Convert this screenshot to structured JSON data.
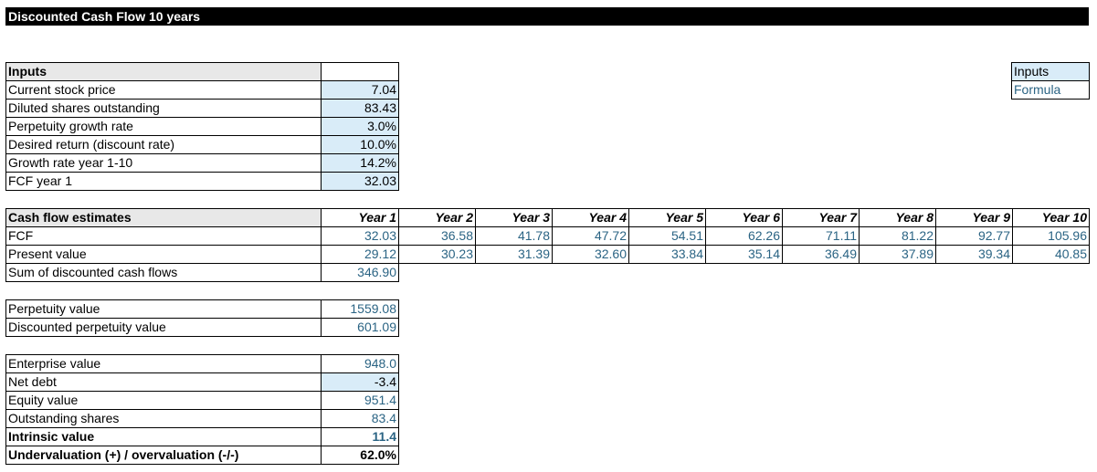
{
  "title": "Discounted Cash Flow 10 years",
  "legend": {
    "inputs": "Inputs",
    "formula": "Formula"
  },
  "inputs": {
    "header": "Inputs",
    "rows": [
      {
        "label": "Current stock price",
        "value": "7.04"
      },
      {
        "label": "Diluted shares outstanding",
        "value": "83.43"
      },
      {
        "label": "Perpetuity growth rate",
        "value": "3.0%"
      },
      {
        "label": "Desired return (discount rate)",
        "value": "10.0%"
      },
      {
        "label": "Growth rate year 1-10",
        "value": "14.2%"
      },
      {
        "label": "FCF year 1",
        "value": "32.03"
      }
    ]
  },
  "cashflow": {
    "header": "Cash flow estimates",
    "years": [
      "Year 1",
      "Year 2",
      "Year 3",
      "Year 4",
      "Year 5",
      "Year 6",
      "Year 7",
      "Year 8",
      "Year 9",
      "Year 10"
    ],
    "fcf_label": "FCF",
    "fcf": [
      "32.03",
      "36.58",
      "41.78",
      "47.72",
      "54.51",
      "62.26",
      "71.11",
      "81.22",
      "92.77",
      "105.96"
    ],
    "pv_label": "Present value",
    "pv": [
      "29.12",
      "30.23",
      "31.39",
      "32.60",
      "33.84",
      "35.14",
      "36.49",
      "37.89",
      "39.34",
      "40.85"
    ],
    "sum_label": "Sum of discounted cash flows",
    "sum": "346.90"
  },
  "perpetuity": {
    "value_label": "Perpetuity value",
    "value": "1559.08",
    "discounted_label": "Discounted perpetuity value",
    "discounted": "601.09"
  },
  "valuation": {
    "enterprise_label": "Enterprise value",
    "enterprise": "948.0",
    "netdebt_label": "Net debt",
    "netdebt": "-3.4",
    "equity_label": "Equity value",
    "equity": "951.4",
    "shares_label": "Outstanding shares",
    "shares": "83.4",
    "intrinsic_label": "Intrinsic value",
    "intrinsic": "11.4",
    "under_label": "Undervaluation (+) / overvaluation (-/-)",
    "under": "62.0%"
  }
}
